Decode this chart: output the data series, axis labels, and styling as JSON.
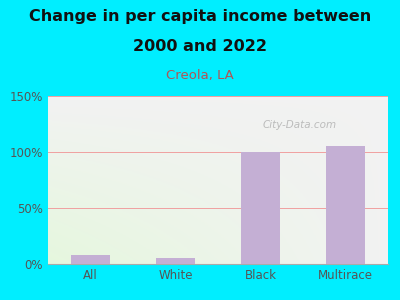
{
  "title_line1": "Change in per capita income between",
  "title_line2": "2000 and 2022",
  "subtitle": "Creola, LA",
  "categories": [
    "All",
    "White",
    "Black",
    "Multirace"
  ],
  "values": [
    8,
    5,
    100,
    105
  ],
  "bar_color": "#c4afd4",
  "title_fontsize": 11.5,
  "subtitle_fontsize": 9.5,
  "subtitle_color": "#b05555",
  "tick_label_color": "#555555",
  "background_outer": "#00eeff",
  "ylim": [
    0,
    150
  ],
  "yticks": [
    0,
    50,
    100,
    150
  ],
  "ytick_labels": [
    "0%",
    "50%",
    "100%",
    "150%"
  ],
  "watermark": "City-Data.com",
  "grid_color": "#f0a0a0",
  "title_color": "#111111"
}
